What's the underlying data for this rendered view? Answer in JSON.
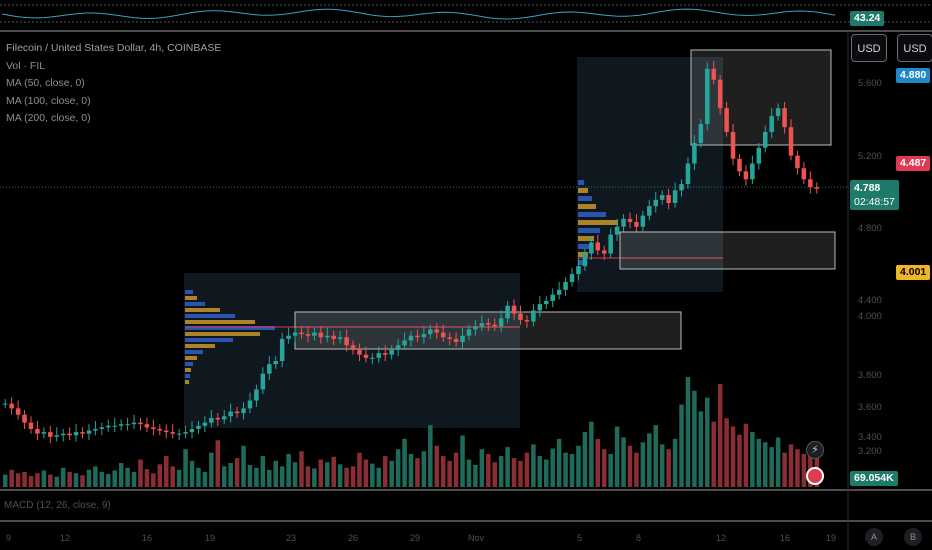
{
  "chart_data": {
    "type": "candlestick",
    "title": "Filecoin / United States Dollar, 4h, COINBASE",
    "legend_lines": [
      "Vol · FIL",
      "MA (50, close, 0)",
      "MA (100, close, 0)",
      "MA (200, close, 0)"
    ],
    "price_ticks": [
      "5.600",
      "5.200",
      "4.800",
      "4.400",
      "4.000",
      "3.800",
      "3.600",
      "3.400",
      "3.200"
    ],
    "time_ticks": [
      "9",
      "12",
      "16",
      "19",
      "23",
      "26",
      "29",
      "Nov",
      "5",
      "8",
      "12",
      "16",
      "19"
    ],
    "macd_label": "MACD (12, 26, close, 9)",
    "rsi_value": "43.24",
    "currency": [
      "USD",
      "USD"
    ],
    "axis_buttons": [
      "A",
      "B"
    ],
    "tags": {
      "ma50": {
        "value": "4.880",
        "color": "#1e88c9"
      },
      "ma100": {
        "value": "4.487",
        "color": "#e03a52"
      },
      "current": {
        "value": "4.788",
        "time": "02:48:57",
        "color": "#1e7a6a"
      },
      "ma200": {
        "value": "4.001",
        "color": "#f0b429"
      },
      "volume": {
        "value": "69.054K",
        "color": "#1e7a6a"
      }
    },
    "close_series": [
      3.43,
      3.4,
      3.36,
      3.31,
      3.27,
      3.24,
      3.25,
      3.22,
      3.23,
      3.24,
      3.23,
      3.25,
      3.24,
      3.26,
      3.27,
      3.28,
      3.29,
      3.29,
      3.3,
      3.3,
      3.31,
      3.3,
      3.28,
      3.27,
      3.26,
      3.25,
      3.24,
      3.24,
      3.25,
      3.27,
      3.29,
      3.31,
      3.34,
      3.33,
      3.35,
      3.38,
      3.37,
      3.4,
      3.45,
      3.52,
      3.62,
      3.68,
      3.7,
      3.84,
      3.86,
      3.88,
      3.87,
      3.86,
      3.88,
      3.85,
      3.86,
      3.84,
      3.85,
      3.8,
      3.77,
      3.74,
      3.72,
      3.72,
      3.75,
      3.74,
      3.77,
      3.8,
      3.83,
      3.86,
      3.85,
      3.87,
      3.9,
      3.88,
      3.85,
      3.84,
      3.82,
      3.86,
      3.9,
      3.92,
      3.94,
      3.93,
      3.92,
      3.97,
      4.05,
      4.0,
      3.96,
      3.95,
      4.02,
      4.06,
      4.08,
      4.12,
      4.15,
      4.2,
      4.25,
      4.3,
      4.38,
      4.45,
      4.4,
      4.38,
      4.5,
      4.55,
      4.6,
      4.58,
      4.55,
      4.62,
      4.68,
      4.72,
      4.75,
      4.7,
      4.78,
      4.82,
      4.95,
      5.08,
      5.2,
      5.55,
      5.48,
      5.3,
      5.15,
      4.98,
      4.9,
      4.85,
      4.95,
      5.05,
      5.15,
      5.25,
      5.3,
      5.18,
      5.0,
      4.92,
      4.85,
      4.8,
      4.79
    ],
    "volumes": [
      18,
      25,
      20,
      22,
      16,
      20,
      24,
      18,
      15,
      28,
      22,
      20,
      17,
      25,
      30,
      22,
      19,
      24,
      35,
      28,
      22,
      40,
      26,
      20,
      33,
      45,
      30,
      25,
      55,
      38,
      28,
      22,
      50,
      68,
      30,
      35,
      42,
      60,
      32,
      28,
      45,
      25,
      38,
      30,
      48,
      36,
      52,
      30,
      27,
      40,
      36,
      44,
      33,
      28,
      30,
      50,
      40,
      34,
      28,
      45,
      38,
      55,
      70,
      48,
      42,
      52,
      90,
      60,
      45,
      38,
      50,
      75,
      40,
      32,
      55,
      48,
      36,
      45,
      58,
      42,
      38,
      50,
      62,
      45,
      40,
      56,
      70,
      50,
      48,
      60,
      80,
      95,
      70,
      55,
      48,
      88,
      72,
      60,
      50,
      65,
      78,
      90,
      62,
      55,
      70,
      120,
      160,
      140,
      110,
      130,
      95,
      150,
      100,
      88,
      76,
      92,
      80,
      70,
      65,
      58,
      72,
      50,
      62,
      55,
      48,
      60,
      52
    ]
  }
}
